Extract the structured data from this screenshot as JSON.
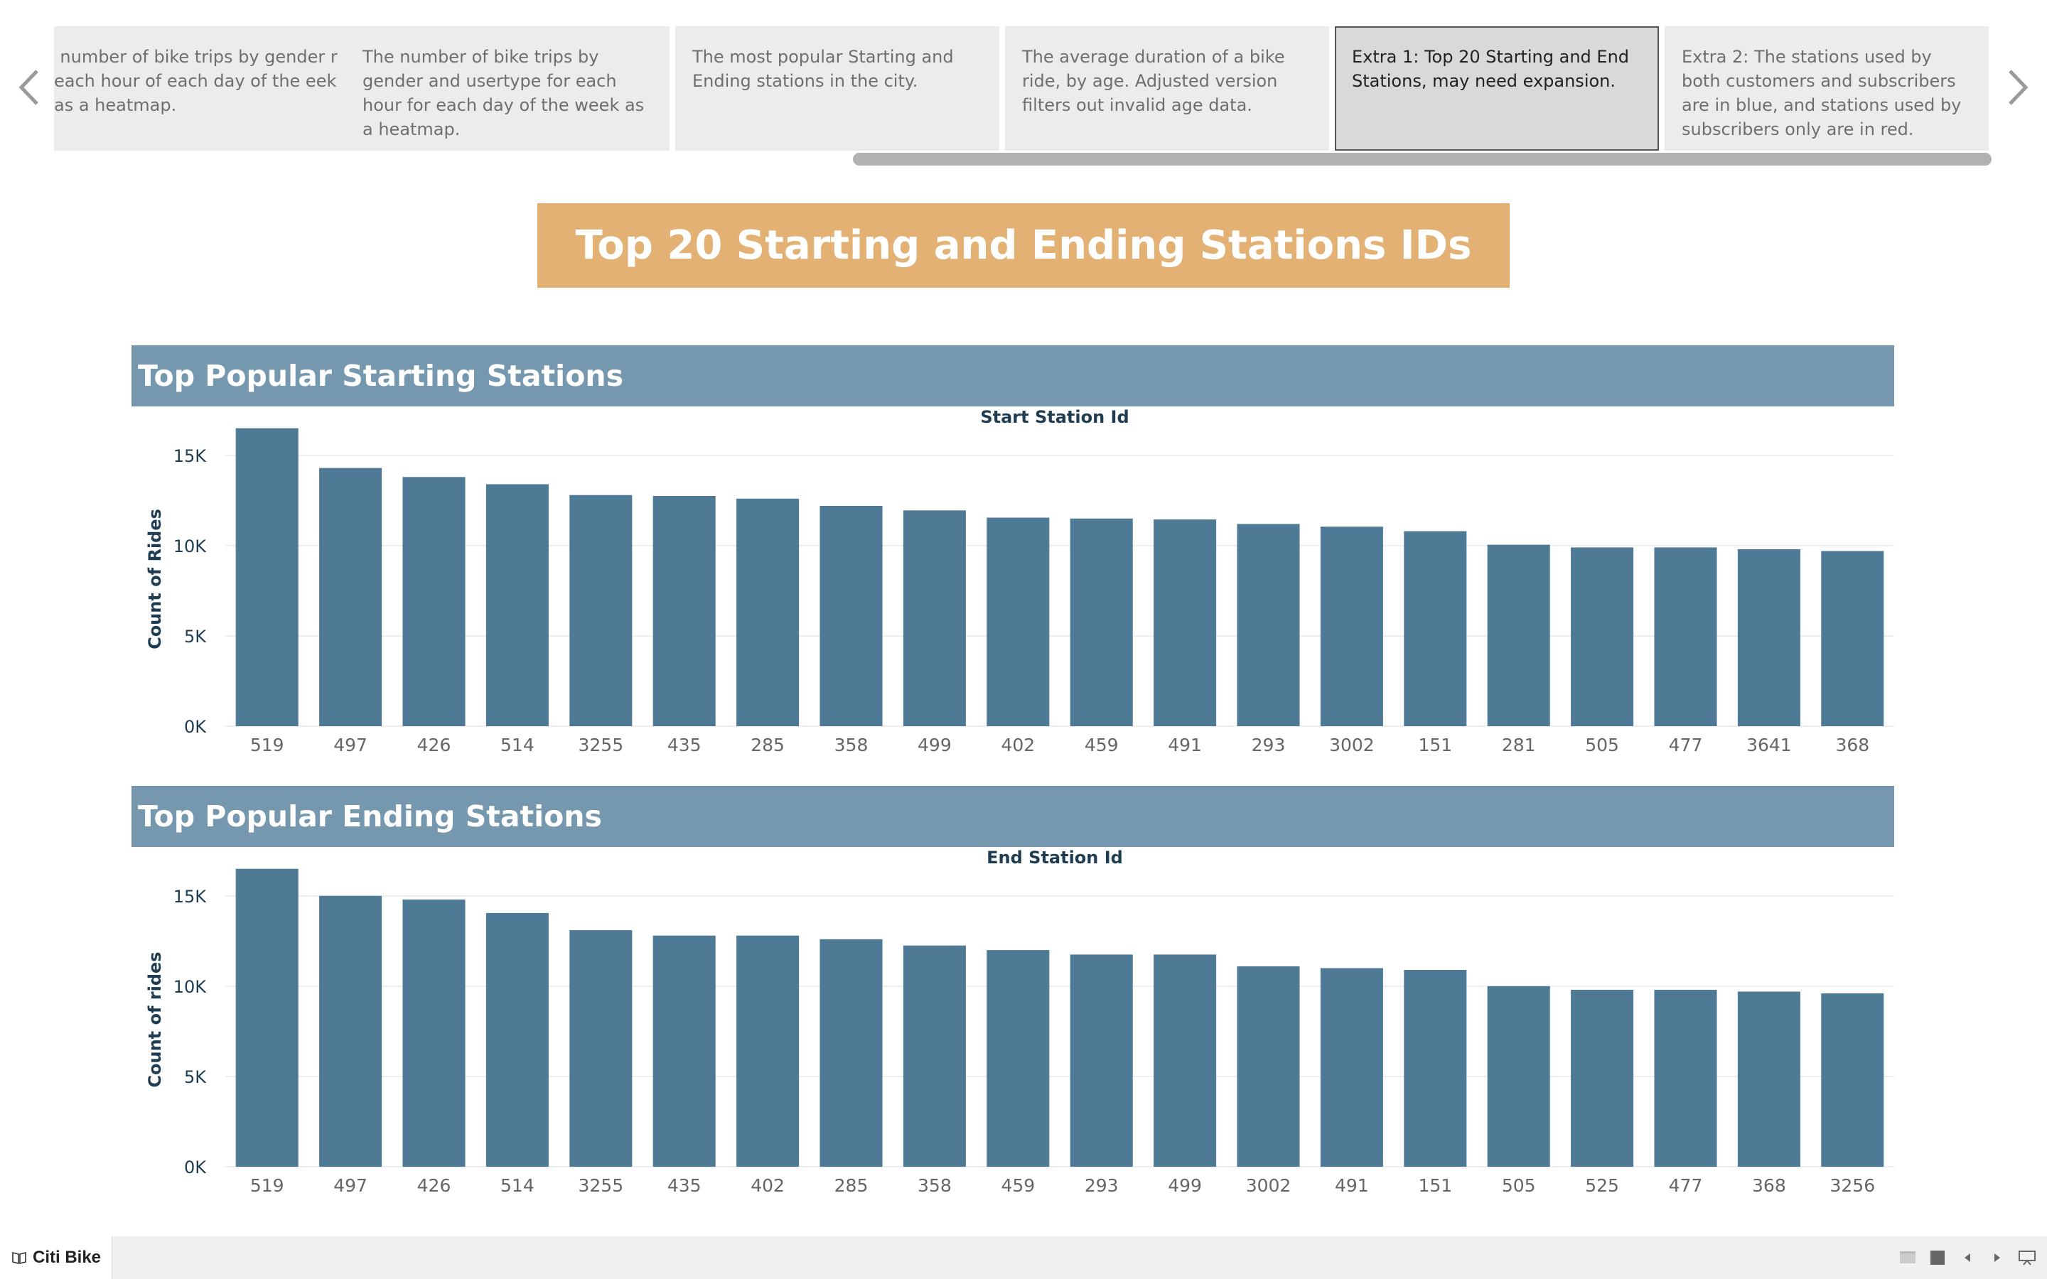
{
  "story_points": [
    {
      "text": "e number of bike trips by gender r each hour of each day of the eek as a heatmap.",
      "active": false
    },
    {
      "text": " The number of bike trips by gender and usertype for each hour for each day of the week as a heatmap.",
      "active": false
    },
    {
      "text": "The most popular Starting and Ending stations in the city.",
      "active": false
    },
    {
      "text": "The average duration of a bike ride, by age. Adjusted version filters out invalid age data.",
      "active": false
    },
    {
      "text": "Extra 1: Top 20 Starting and End Stations, may need expansion.",
      "active": true
    },
    {
      "text": "Extra 2: The stations used by both customers and subscribers are in blue, and stations used by subscribers only are in red.",
      "active": false
    }
  ],
  "dashboard_title": "Top 20 Starting and Ending Stations IDs",
  "sections": {
    "start": {
      "header": "Top Popular Starting Stations"
    },
    "end": {
      "header": "Top Popular Ending Stations"
    }
  },
  "chart_data": [
    {
      "type": "bar",
      "title": "Start Station Id",
      "ylabel": "Count of Rides",
      "xlabel": "",
      "categories": [
        "519",
        "497",
        "426",
        "514",
        "3255",
        "435",
        "285",
        "358",
        "499",
        "402",
        "459",
        "491",
        "293",
        "3002",
        "151",
        "281",
        "505",
        "477",
        "3641",
        "368"
      ],
      "values": [
        16500,
        14300,
        13800,
        13400,
        12800,
        12750,
        12600,
        12200,
        11950,
        11550,
        11500,
        11450,
        11200,
        11050,
        10800,
        10050,
        9900,
        9900,
        9800,
        9700
      ],
      "ylim": [
        0,
        17000
      ],
      "yticks": [
        0,
        5000,
        10000,
        15000
      ],
      "ytick_labels": [
        "0K",
        "5K",
        "10K",
        "15K"
      ],
      "grid": true,
      "color": "#4e7a96"
    },
    {
      "type": "bar",
      "title": "End Station Id",
      "ylabel": "Count of rides",
      "xlabel": "",
      "categories": [
        "519",
        "497",
        "426",
        "514",
        "3255",
        "435",
        "402",
        "285",
        "358",
        "459",
        "293",
        "499",
        "3002",
        "491",
        "151",
        "505",
        "525",
        "477",
        "368",
        "3256"
      ],
      "values": [
        16500,
        15000,
        14800,
        14050,
        13100,
        12800,
        12800,
        12600,
        12250,
        12000,
        11750,
        11750,
        11100,
        11000,
        10900,
        10000,
        9800,
        9800,
        9700,
        9600
      ],
      "ylim": [
        0,
        17000
      ],
      "yticks": [
        0,
        5000,
        10000,
        15000
      ],
      "ytick_labels": [
        "0K",
        "5K",
        "10K",
        "15K"
      ],
      "grid": true,
      "color": "#4e7a96"
    }
  ],
  "footer": {
    "brand": "Citi Bike"
  },
  "colors": {
    "title_bg": "#e4b174",
    "section_bg": "#7598ae",
    "bar": "#4e7a96",
    "axis_text": "#1f3d52"
  },
  "icons": {
    "prev": "chevron-left-icon",
    "next": "chevron-right-icon",
    "brand": "book-icon"
  }
}
